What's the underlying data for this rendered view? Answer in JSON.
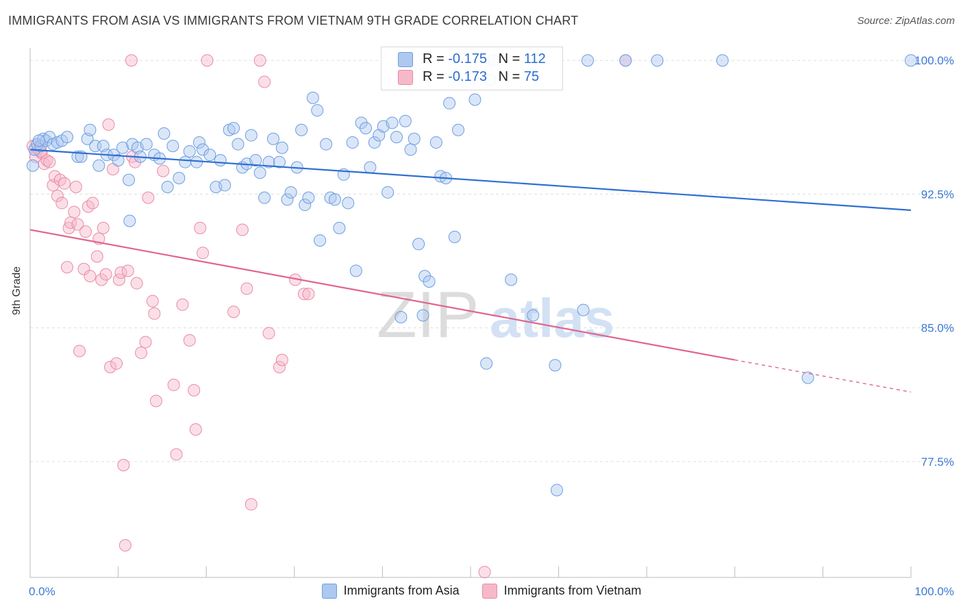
{
  "header": {
    "title": "IMMIGRANTS FROM ASIA VS IMMIGRANTS FROM VIETNAM 9TH GRADE CORRELATION CHART",
    "source": "Source: ZipAtlas.com"
  },
  "watermark": {
    "zip": "ZIP",
    "atlas": "atlas"
  },
  "legend": {
    "asia": {
      "r_label": "R =",
      "r_value": "-0.175",
      "n_label": "N =",
      "n_value": "112"
    },
    "vietnam": {
      "r_label": "R =",
      "r_value": "-0.173",
      "n_label": "N =",
      "n_value": "75"
    }
  },
  "bottom_legend": {
    "asia": "Immigrants from Asia",
    "vietnam": "Immigrants from Vietnam"
  },
  "colors": {
    "asia_fill": "#aec8f0",
    "asia_stroke": "#6a9ee0",
    "asia_line": "#2e6fd2",
    "vietnam_fill": "#f7b8ca",
    "vietnam_stroke": "#e98aa8",
    "vietnam_line": "#e0648f",
    "tick_label": "#3a78d4"
  },
  "chart_data": {
    "type": "scatter",
    "title": "IMMIGRANTS FROM ASIA VS IMMIGRANTS FROM VIETNAM 9TH GRADE CORRELATION CHART",
    "xlabel": "",
    "ylabel": "9th Grade",
    "xlim": [
      0,
      100
    ],
    "ylim": [
      71,
      100.7
    ],
    "x_tick_labels": [
      "0.0%",
      "100.0%"
    ],
    "y_ticks": [
      77.5,
      85.0,
      92.5,
      100.0
    ],
    "y_tick_labels": [
      "77.5%",
      "85.0%",
      "92.5%",
      "100.0%"
    ],
    "grid": true,
    "series": [
      {
        "name": "Immigrants from Asia",
        "r": -0.175,
        "n": 112,
        "trend": {
          "x": [
            0,
            100
          ],
          "y": [
            95.0,
            91.6
          ]
        },
        "points": [
          [
            0.3,
            94.1
          ],
          [
            0.5,
            95.0
          ],
          [
            0.8,
            95.3
          ],
          [
            1.2,
            95.2
          ],
          [
            1.5,
            95.6
          ],
          [
            1.8,
            95.5
          ],
          [
            2.2,
            95.7
          ],
          [
            2.6,
            95.3
          ],
          [
            3.1,
            95.4
          ],
          [
            3.6,
            95.5
          ],
          [
            4.2,
            95.7
          ],
          [
            5.4,
            94.6
          ],
          [
            5.8,
            94.6
          ],
          [
            6.5,
            95.6
          ],
          [
            6.8,
            96.1
          ],
          [
            7.4,
            95.2
          ],
          [
            7.8,
            94.1
          ],
          [
            8.3,
            95.2
          ],
          [
            8.7,
            94.7
          ],
          [
            9.5,
            94.7
          ],
          [
            10.0,
            94.4
          ],
          [
            10.5,
            95.1
          ],
          [
            11.2,
            93.3
          ],
          [
            11.3,
            91.0
          ],
          [
            11.6,
            95.3
          ],
          [
            12.2,
            95.1
          ],
          [
            12.5,
            94.6
          ],
          [
            13.2,
            95.3
          ],
          [
            14.1,
            94.7
          ],
          [
            14.7,
            94.5
          ],
          [
            15.2,
            95.9
          ],
          [
            15.6,
            92.9
          ],
          [
            16.2,
            95.2
          ],
          [
            16.9,
            93.4
          ],
          [
            17.6,
            94.3
          ],
          [
            18.1,
            94.9
          ],
          [
            18.9,
            94.3
          ],
          [
            19.2,
            95.4
          ],
          [
            19.6,
            95.0
          ],
          [
            20.4,
            94.7
          ],
          [
            21.1,
            92.9
          ],
          [
            21.6,
            94.4
          ],
          [
            22.1,
            93.0
          ],
          [
            22.6,
            96.1
          ],
          [
            23.1,
            96.2
          ],
          [
            23.6,
            95.3
          ],
          [
            24.1,
            94.0
          ],
          [
            24.6,
            94.2
          ],
          [
            25.1,
            95.8
          ],
          [
            25.6,
            94.4
          ],
          [
            26.1,
            93.7
          ],
          [
            26.6,
            92.3
          ],
          [
            27.1,
            94.3
          ],
          [
            27.6,
            95.6
          ],
          [
            28.3,
            94.3
          ],
          [
            28.6,
            95.1
          ],
          [
            29.2,
            92.2
          ],
          [
            29.6,
            92.6
          ],
          [
            30.3,
            94.0
          ],
          [
            30.8,
            96.1
          ],
          [
            31.2,
            91.9
          ],
          [
            31.6,
            92.3
          ],
          [
            32.1,
            97.9
          ],
          [
            32.6,
            97.2
          ],
          [
            32.9,
            89.9
          ],
          [
            33.6,
            95.3
          ],
          [
            34.1,
            92.3
          ],
          [
            34.6,
            92.2
          ],
          [
            35.1,
            90.6
          ],
          [
            35.6,
            93.6
          ],
          [
            36.1,
            92.0
          ],
          [
            36.6,
            95.4
          ],
          [
            37.0,
            88.2
          ],
          [
            37.6,
            96.5
          ],
          [
            38.1,
            96.2
          ],
          [
            38.6,
            94.0
          ],
          [
            39.1,
            95.4
          ],
          [
            39.6,
            95.8
          ],
          [
            40.1,
            96.3
          ],
          [
            40.6,
            92.6
          ],
          [
            41.1,
            96.5
          ],
          [
            41.6,
            95.7
          ],
          [
            42.1,
            85.6
          ],
          [
            42.6,
            96.6
          ],
          [
            43.2,
            95.0
          ],
          [
            43.6,
            95.6
          ],
          [
            44.1,
            89.7
          ],
          [
            44.6,
            85.7
          ],
          [
            44.8,
            87.9
          ],
          [
            45.3,
            87.6
          ],
          [
            46.1,
            95.4
          ],
          [
            46.6,
            93.5
          ],
          [
            47.2,
            93.4
          ],
          [
            47.6,
            97.6
          ],
          [
            48.2,
            90.1
          ],
          [
            48.6,
            96.1
          ],
          [
            50.5,
            97.8
          ],
          [
            51.8,
            83.0
          ],
          [
            52.2,
            98.9
          ],
          [
            52.6,
            100.0
          ],
          [
            54.6,
            87.7
          ],
          [
            57.1,
            85.7
          ],
          [
            59.6,
            82.9
          ],
          [
            59.8,
            75.9
          ],
          [
            62.8,
            86.0
          ],
          [
            63.3,
            100.0
          ],
          [
            67.6,
            100.0
          ],
          [
            71.2,
            100.0
          ],
          [
            78.6,
            100.0
          ],
          [
            88.3,
            82.2
          ],
          [
            100.0,
            100.0
          ],
          [
            1.0,
            95.5
          ]
        ]
      },
      {
        "name": "Immigrants from Vietnam",
        "r": -0.173,
        "n": 75,
        "trend": {
          "x": [
            0,
            80
          ],
          "y": [
            90.5,
            83.2
          ]
        },
        "trend_dashed": {
          "x": [
            80,
            100
          ],
          "y": [
            83.2,
            81.4
          ]
        },
        "points": [
          [
            0.3,
            95.2
          ],
          [
            0.6,
            94.6
          ],
          [
            0.9,
            95.0
          ],
          [
            1.3,
            94.8
          ],
          [
            1.6,
            94.2
          ],
          [
            1.9,
            94.4
          ],
          [
            2.2,
            94.3
          ],
          [
            2.6,
            93.0
          ],
          [
            2.8,
            93.5
          ],
          [
            3.1,
            92.4
          ],
          [
            3.4,
            93.3
          ],
          [
            3.6,
            92.0
          ],
          [
            3.9,
            93.1
          ],
          [
            4.2,
            88.4
          ],
          [
            4.4,
            90.6
          ],
          [
            4.6,
            90.9
          ],
          [
            5.0,
            91.5
          ],
          [
            5.2,
            92.9
          ],
          [
            5.4,
            90.8
          ],
          [
            5.6,
            83.7
          ],
          [
            6.1,
            88.3
          ],
          [
            6.3,
            90.4
          ],
          [
            6.6,
            91.8
          ],
          [
            6.8,
            87.9
          ],
          [
            7.1,
            92.0
          ],
          [
            7.6,
            89.0
          ],
          [
            7.8,
            90.0
          ],
          [
            8.1,
            87.7
          ],
          [
            8.3,
            90.6
          ],
          [
            8.6,
            88.0
          ],
          [
            8.9,
            96.4
          ],
          [
            9.1,
            82.8
          ],
          [
            9.4,
            93.9
          ],
          [
            9.8,
            83.0
          ],
          [
            10.1,
            87.7
          ],
          [
            10.3,
            88.1
          ],
          [
            10.6,
            77.3
          ],
          [
            10.8,
            72.8
          ],
          [
            11.1,
            88.2
          ],
          [
            11.6,
            94.6
          ],
          [
            11.9,
            94.3
          ],
          [
            12.1,
            87.5
          ],
          [
            12.6,
            83.6
          ],
          [
            13.1,
            84.2
          ],
          [
            13.4,
            92.3
          ],
          [
            13.9,
            86.5
          ],
          [
            14.1,
            85.8
          ],
          [
            14.3,
            80.9
          ],
          [
            15.1,
            93.8
          ],
          [
            16.3,
            81.8
          ],
          [
            16.6,
            77.9
          ],
          [
            17.3,
            86.3
          ],
          [
            18.1,
            84.3
          ],
          [
            18.6,
            81.5
          ],
          [
            18.8,
            79.3
          ],
          [
            19.3,
            90.6
          ],
          [
            19.6,
            89.2
          ],
          [
            20.1,
            100.0
          ],
          [
            23.1,
            85.9
          ],
          [
            24.1,
            90.5
          ],
          [
            24.6,
            87.2
          ],
          [
            25.1,
            75.1
          ],
          [
            26.1,
            100.0
          ],
          [
            26.6,
            98.8
          ],
          [
            27.1,
            84.7
          ],
          [
            28.3,
            82.8
          ],
          [
            28.6,
            83.2
          ],
          [
            30.1,
            87.7
          ],
          [
            31.1,
            86.9
          ],
          [
            31.6,
            86.9
          ],
          [
            51.6,
            71.3
          ],
          [
            67.6,
            100.0
          ],
          [
            0.8,
            95.3
          ],
          [
            1.2,
            94.9
          ],
          [
            11.5,
            100.0
          ]
        ]
      }
    ]
  }
}
